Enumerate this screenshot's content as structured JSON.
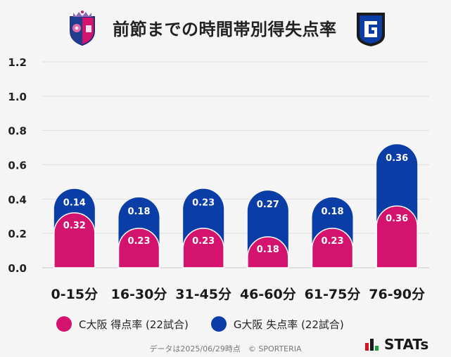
{
  "header": {
    "title": "前節までの時間帯別得失点率"
  },
  "chart_data": {
    "type": "bar",
    "categories": [
      "0-15分",
      "16-30分",
      "31-45分",
      "46-60分",
      "61-75分",
      "76-90分"
    ],
    "series": [
      {
        "name": "C大阪 得点率 (22試合)",
        "values": [
          0.32,
          0.23,
          0.23,
          0.18,
          0.23,
          0.36
        ],
        "color": "#d4136e"
      },
      {
        "name": "G大阪 失点率 (22試合)",
        "values": [
          0.14,
          0.18,
          0.23,
          0.27,
          0.18,
          0.36
        ],
        "color": "#0a3ea6"
      }
    ],
    "stacked": true,
    "ylim": [
      0,
      1.2
    ],
    "yticks": [
      "0.0",
      "0.2",
      "0.4",
      "0.6",
      "0.8",
      "1.0",
      "1.2"
    ],
    "grid": true,
    "legend_position": "bottom-left"
  },
  "legend": {
    "items": [
      {
        "label": "C大阪 得点率 (22試合)",
        "color": "#d4136e"
      },
      {
        "label": "G大阪 失点率 (22試合)",
        "color": "#0a3ea6"
      }
    ]
  },
  "footer": {
    "text": "データは2025/06/29時点　© SPORTERIA"
  },
  "brand": {
    "name": "STATs"
  }
}
